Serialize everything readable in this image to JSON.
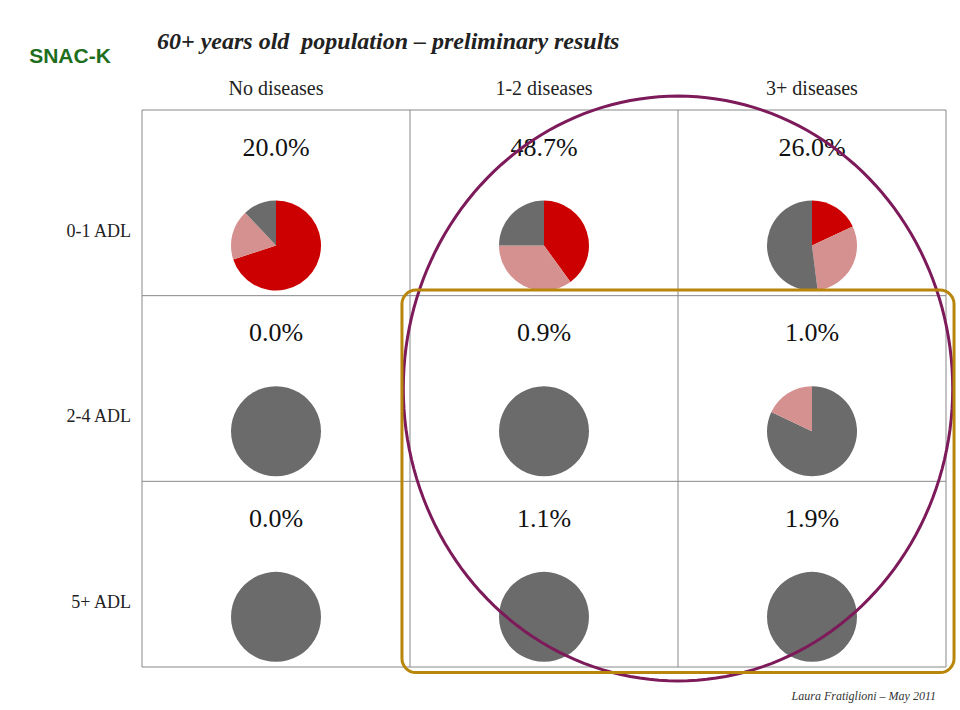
{
  "chart_data": {
    "type": "pie",
    "title": "60+ years old  population – preliminary results",
    "columns": [
      "No diseases",
      "1-2 diseases",
      "3+ diseases"
    ],
    "rows": [
      "0-1 ADL",
      "2-4 ADL",
      "5+ ADL"
    ],
    "cells": [
      [
        {
          "title": "20.0%",
          "values": [
            70,
            18,
            12
          ],
          "colors": [
            "#cc0000",
            "#d4918f",
            "#6b6b6b"
          ]
        },
        {
          "title": "48.7%",
          "values": [
            40,
            35,
            25
          ],
          "colors": [
            "#cc0000",
            "#d4918f",
            "#6b6b6b"
          ]
        },
        {
          "title": "26.0%",
          "values": [
            18,
            30,
            52
          ],
          "colors": [
            "#cc0000",
            "#d4918f",
            "#6b6b6b"
          ]
        }
      ],
      [
        {
          "title": "0.0%",
          "values": [
            100
          ],
          "colors": [
            "#6b6b6b"
          ]
        },
        {
          "title": "0.9%",
          "values": [
            100
          ],
          "colors": [
            "#6b6b6b"
          ]
        },
        {
          "title": "1.0%",
          "values": [
            82,
            18
          ],
          "colors": [
            "#6b6b6b",
            "#d4918f"
          ]
        }
      ],
      [
        {
          "title": "0.0%",
          "values": [
            100
          ],
          "colors": [
            "#6b6b6b"
          ]
        },
        {
          "title": "1.1%",
          "values": [
            100
          ],
          "colors": [
            "#6b6b6b"
          ]
        },
        {
          "title": "1.9%",
          "values": [
            100
          ],
          "colors": [
            "#6b6b6b"
          ]
        }
      ]
    ],
    "highlight_colors": [
      "#7d1a5a",
      "#b8860b"
    ],
    "annotations": [
      {
        "text": "SNAC-K",
        "color": "#1e6e1e"
      },
      {
        "text": "Laura Fratiglioni – May 2011"
      }
    ]
  }
}
